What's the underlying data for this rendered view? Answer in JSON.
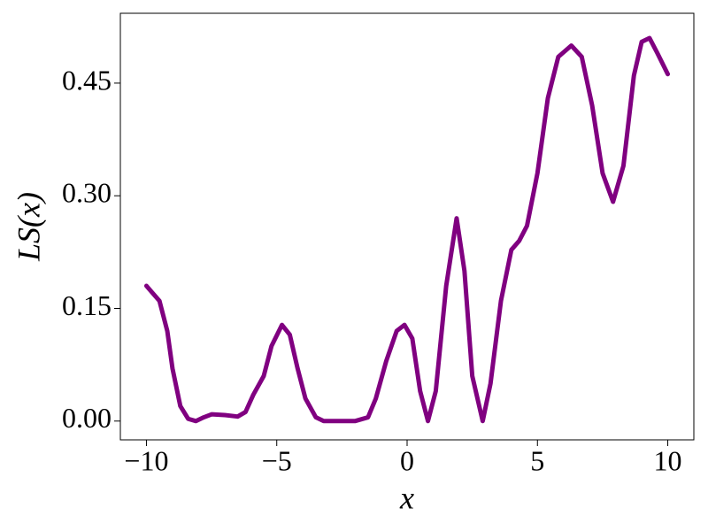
{
  "chart_data": {
    "type": "line",
    "x_label": "x",
    "y_label": "LS(x)",
    "x": [
      -10,
      -9.8,
      -9.5,
      -9.2,
      -9.0,
      -8.7,
      -8.4,
      -8.1,
      -7.8,
      -7.5,
      -7.0,
      -6.5,
      -6.2,
      -5.9,
      -5.5,
      -5.2,
      -4.8,
      -4.5,
      -4.2,
      -3.9,
      -3.5,
      -3.2,
      -2.5,
      -2.0,
      -1.5,
      -1.2,
      -0.8,
      -0.4,
      -0.1,
      0.2,
      0.5,
      0.8,
      1.1,
      1.5,
      1.9,
      2.2,
      2.5,
      2.9,
      3.2,
      3.6,
      4.0,
      4.3,
      4.6,
      5.0,
      5.4,
      5.8,
      6.3,
      6.7,
      7.1,
      7.5,
      7.9,
      8.3,
      8.7,
      9.0,
      9.3,
      9.6,
      10.0
    ],
    "series": [
      {
        "color": "#800080",
        "values": [
          0.18,
          0.172,
          0.16,
          0.12,
          0.07,
          0.02,
          0.003,
          0.0,
          0.005,
          0.009,
          0.008,
          0.006,
          0.012,
          0.035,
          0.06,
          0.1,
          0.128,
          0.115,
          0.07,
          0.03,
          0.005,
          0.0,
          0.0,
          0.0,
          0.005,
          0.03,
          0.08,
          0.12,
          0.128,
          0.11,
          0.04,
          0.0,
          0.04,
          0.18,
          0.27,
          0.2,
          0.06,
          0.0,
          0.05,
          0.16,
          0.228,
          0.24,
          0.26,
          0.33,
          0.43,
          0.485,
          0.5,
          0.485,
          0.42,
          0.33,
          0.292,
          0.34,
          0.46,
          0.505,
          0.51,
          0.49,
          0.462
        ]
      }
    ],
    "xlim": [
      -11,
      11
    ],
    "ylim": [
      -0.025,
      0.543
    ],
    "xticks": [
      {
        "value": -10,
        "label": "−10"
      },
      {
        "value": -5,
        "label": "−5"
      },
      0,
      5,
      10
    ],
    "yticks": [
      {
        "value": 0,
        "label": "0.00"
      },
      {
        "value": 0.15,
        "label": "0.15"
      },
      {
        "value": 0.3,
        "label": "0.30"
      },
      {
        "value": 0.45,
        "label": "0.45"
      }
    ]
  }
}
